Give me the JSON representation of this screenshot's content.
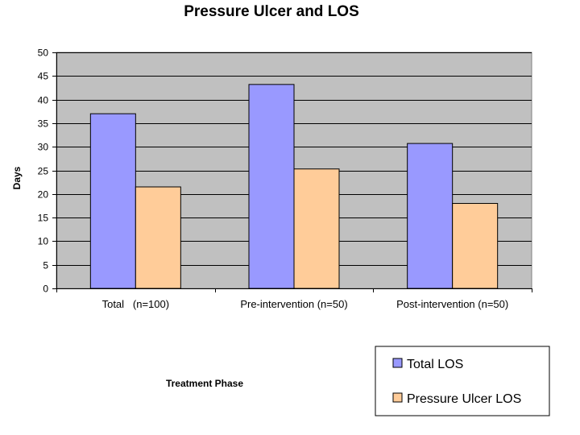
{
  "chart_data": {
    "type": "bar",
    "title": "Pressure Ulcer and LOS",
    "xlabel": "Treatment Phase",
    "ylabel": "Days",
    "ylim": [
      0,
      50
    ],
    "ytick_step": 5,
    "grid": true,
    "legend_position": "bottom-right",
    "categories": [
      "Total   (n=100)",
      "Pre-intervention (n=50)",
      "Post-intervention (n=50)"
    ],
    "series": [
      {
        "name": "Total LOS",
        "values": [
          37,
          43.2,
          30.7
        ],
        "color": "#9999ff"
      },
      {
        "name": "Pressure Ulcer LOS",
        "values": [
          21.5,
          25.3,
          18
        ],
        "color": "#ffcc99"
      }
    ],
    "plot_background": "#c0c0c0"
  }
}
